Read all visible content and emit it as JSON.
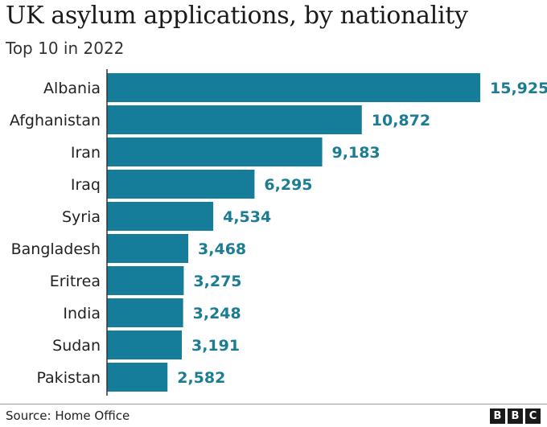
{
  "header": {
    "title": "UK asylum applications, by nationality",
    "subtitle": "Top 10 in 2022"
  },
  "footer": {
    "source": "Source: Home Office",
    "logo": [
      "B",
      "B",
      "C"
    ]
  },
  "colors": {
    "bar": "#157c99",
    "value_label": "#1b7c94",
    "axis": "#333333"
  },
  "chart_data": {
    "type": "bar",
    "orientation": "horizontal",
    "title": "UK asylum applications, by nationality",
    "subtitle": "Top 10 in 2022",
    "categories": [
      "Albania",
      "Afghanistan",
      "Iran",
      "Iraq",
      "Syria",
      "Bangladesh",
      "Eritrea",
      "India",
      "Sudan",
      "Pakistan"
    ],
    "values": [
      15925,
      10872,
      9183,
      6295,
      4534,
      3468,
      3275,
      3248,
      3191,
      2582
    ],
    "value_labels": [
      "15,925",
      "10,872",
      "9,183",
      "6,295",
      "4,534",
      "3,468",
      "3,275",
      "3,248",
      "3,191",
      "2,582"
    ],
    "xlim": [
      0,
      15925
    ],
    "grid": false,
    "legend": "none"
  }
}
